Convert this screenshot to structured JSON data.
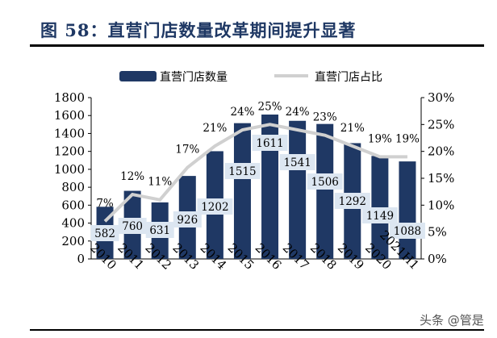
{
  "title": "图 58：直营门店数量改革期间提升显著",
  "watermark": "头条 @管是",
  "chart_data": {
    "type": "bar+line",
    "categories": [
      "2010",
      "2011",
      "2012",
      "2013",
      "2014",
      "2015",
      "2016",
      "2017",
      "2018",
      "2019",
      "2020",
      "2021H1"
    ],
    "series": [
      {
        "name": "直营门店数量",
        "type": "bar",
        "axis": "left",
        "color": "#1f3864",
        "values": [
          582,
          760,
          631,
          926,
          1202,
          1515,
          1611,
          1541,
          1506,
          1292,
          1149,
          1088
        ]
      },
      {
        "name": "直营门店占比",
        "type": "line",
        "axis": "right",
        "color": "#d0d0d0",
        "values": [
          7,
          12,
          11,
          17,
          21,
          24,
          25,
          24,
          23,
          21,
          19,
          19
        ]
      }
    ],
    "left_axis": {
      "ylim": [
        0,
        1800
      ],
      "ticks": [
        0,
        200,
        400,
        600,
        800,
        1000,
        1200,
        1400,
        1600,
        1800
      ]
    },
    "right_axis": {
      "ylim": [
        0,
        30
      ],
      "ticks": [
        "0%",
        "5%",
        "10%",
        "15%",
        "20%",
        "25%",
        "30%"
      ]
    },
    "legend_position": "top",
    "label_box_color": "#dce6f1",
    "grid": false
  }
}
